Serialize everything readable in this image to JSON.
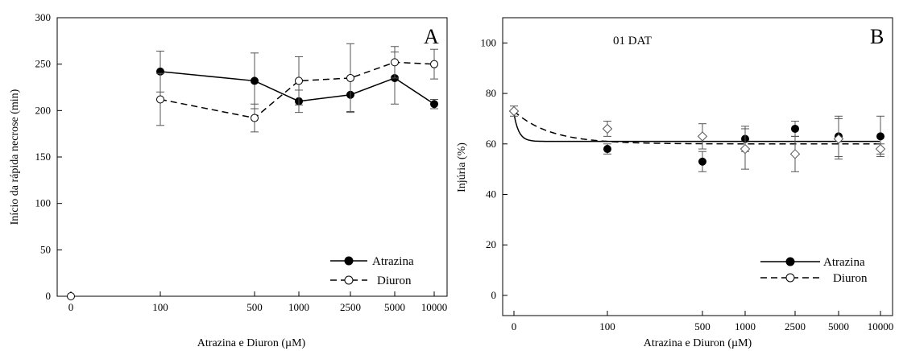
{
  "chart_data": [
    {
      "panel": "A",
      "type": "line",
      "ylabel": "Início da rápida necrose (min)",
      "xlabel": "Atrazina  e Diuron (µM)",
      "x_tick_labels": [
        "0",
        "100",
        "500",
        "1000",
        "2500",
        "5000",
        "10000"
      ],
      "y_ticks": [
        0,
        50,
        100,
        150,
        200,
        250,
        300
      ],
      "ylim": [
        0,
        300
      ],
      "legend_position": "bottom-right",
      "series": [
        {
          "name": "Atrazina",
          "marker": "filled-circle",
          "line": "solid",
          "color": "#000000",
          "x": [
            "100",
            "500",
            "1000",
            "2500",
            "5000",
            "10000"
          ],
          "values": [
            242,
            232,
            210,
            217,
            235,
            207
          ],
          "errors": [
            22,
            30,
            12,
            18,
            28,
            5
          ]
        },
        {
          "name": "Diuron",
          "marker": "open-circle",
          "line": "dashed",
          "color": "#000000",
          "x": [
            "100",
            "500",
            "1000",
            "2500",
            "5000",
            "10000"
          ],
          "values": [
            212,
            192,
            232,
            235,
            252,
            250
          ],
          "errors": [
            28,
            15,
            26,
            37,
            17,
            16
          ]
        }
      ],
      "extra_points": [
        {
          "x": "0",
          "value": 0,
          "marker": "open-circle"
        }
      ]
    },
    {
      "panel": "B",
      "type": "scatter",
      "annotation": "01 DAT",
      "ylabel": "Injúria (%)",
      "xlabel": "Atrazina  e Diuron (µM)",
      "x_tick_labels": [
        "0",
        "100",
        "500",
        "1000",
        "2500",
        "5000",
        "10000"
      ],
      "y_ticks": [
        0,
        20,
        40,
        60,
        80,
        100
      ],
      "ylim": [
        -8,
        110
      ],
      "legend_position": "bottom-right",
      "series": [
        {
          "name": "Atrazina",
          "marker": "filled-circle",
          "line": "solid",
          "color": "#000000",
          "x": [
            "100",
            "500",
            "1000",
            "2500",
            "5000",
            "10000"
          ],
          "values": [
            58,
            53,
            62,
            66,
            63,
            63
          ],
          "errors": [
            2,
            4,
            5,
            3,
            8,
            8
          ],
          "fit": {
            "start": 72,
            "plateau": 61,
            "shape": "fast-decay"
          }
        },
        {
          "name": "Diuron",
          "marker": "open-diamond",
          "line": "dashed",
          "color": "#000000",
          "x": [
            "100",
            "500",
            "1000",
            "2500",
            "5000",
            "10000"
          ],
          "values": [
            66,
            63,
            58,
            56,
            62,
            58
          ],
          "errors": [
            3,
            5,
            8,
            7,
            8,
            2
          ],
          "fit": {
            "start": 73,
            "plateau": 60,
            "shape": "slow-decay"
          }
        }
      ],
      "extra_points": [
        {
          "x": "0",
          "value": 73,
          "marker": "open-diamond",
          "error": 2
        }
      ]
    }
  ]
}
